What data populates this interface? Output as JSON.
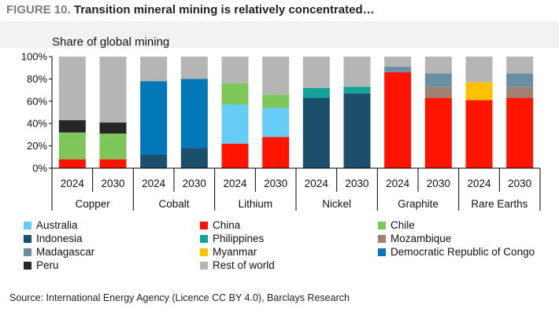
{
  "figure": {
    "label": "FIGURE 10.",
    "title": "Transition mineral mining is relatively concentrated…",
    "source": "Source: International Energy Agency (Licence CC BY 4.0), Barclays Research"
  },
  "chart_data": {
    "type": "bar",
    "stacked": true,
    "title": "Share of global mining",
    "ylim": [
      0,
      100
    ],
    "yticks": [
      "0%",
      "20%",
      "40%",
      "60%",
      "80%",
      "100%"
    ],
    "groups": [
      "Copper",
      "Cobalt",
      "Lithium",
      "Nickel",
      "Graphite",
      "Rare Earths"
    ],
    "years": [
      "2024",
      "2030"
    ],
    "categories": [
      "Copper 2024",
      "Copper 2030",
      "Cobalt 2024",
      "Cobalt 2030",
      "Lithium 2024",
      "Lithium 2030",
      "Nickel 2024",
      "Nickel 2030",
      "Graphite 2024",
      "Graphite 2030",
      "Rare Earths 2024",
      "Rare Earths 2030"
    ],
    "series": [
      {
        "name": "Australia",
        "color": "#66ccf5",
        "values": [
          0,
          0,
          0,
          0,
          35,
          26,
          0,
          0,
          0,
          0,
          0,
          0
        ]
      },
      {
        "name": "China",
        "color": "#ff1400",
        "values": [
          8,
          8,
          0,
          0,
          22,
          28,
          0,
          0,
          86,
          63,
          61,
          63
        ]
      },
      {
        "name": "Chile",
        "color": "#7fc65a",
        "values": [
          24,
          23,
          0,
          0,
          19,
          12,
          0,
          0,
          0,
          0,
          0,
          0
        ]
      },
      {
        "name": "Indonesia",
        "color": "#1b4f6b",
        "values": [
          0,
          0,
          12,
          18,
          0,
          0,
          63,
          67,
          0,
          0,
          0,
          0
        ]
      },
      {
        "name": "Philippines",
        "color": "#14a39a",
        "values": [
          0,
          0,
          0,
          0,
          0,
          0,
          9,
          6,
          0,
          0,
          0,
          0
        ]
      },
      {
        "name": "Mozambique",
        "color": "#a08273",
        "values": [
          0,
          0,
          0,
          0,
          0,
          0,
          0,
          0,
          0,
          10,
          0,
          10
        ]
      },
      {
        "name": "Madagascar",
        "color": "#6a8ea3",
        "values": [
          0,
          0,
          0,
          0,
          0,
          0,
          0,
          0,
          5,
          12,
          0,
          12
        ]
      },
      {
        "name": "Myanmar",
        "color": "#ffc000",
        "values": [
          0,
          0,
          0,
          0,
          0,
          0,
          0,
          0,
          0,
          0,
          16,
          0
        ]
      },
      {
        "name": "Democratic Republic of Congo",
        "color": "#0077b6",
        "values": [
          0,
          0,
          66,
          62,
          0,
          0,
          0,
          0,
          0,
          0,
          0,
          0
        ]
      },
      {
        "name": "Peru",
        "color": "#262626",
        "values": [
          11,
          10,
          0,
          0,
          0,
          0,
          0,
          0,
          0,
          0,
          0,
          0
        ]
      },
      {
        "name": "Rest of world",
        "color": "#b5b5b5",
        "values": [
          57,
          59,
          22,
          20,
          24,
          34,
          28,
          27,
          9,
          15,
          23,
          15
        ]
      }
    ],
    "stack_order": [
      "China",
      "Australia",
      "Chile",
      "Indonesia",
      "Democratic Republic of Congo",
      "Philippines",
      "Mozambique",
      "Madagascar",
      "Myanmar",
      "Peru",
      "Rest of world"
    ],
    "legend": {
      "placement": "bottom",
      "columns": [
        [
          "Australia",
          "Indonesia",
          "Madagascar",
          "Peru"
        ],
        [
          "China",
          "Philippines",
          "Myanmar",
          "Rest of world"
        ],
        [
          "Chile",
          "Mozambique",
          "Democratic Republic of Congo"
        ]
      ]
    }
  }
}
